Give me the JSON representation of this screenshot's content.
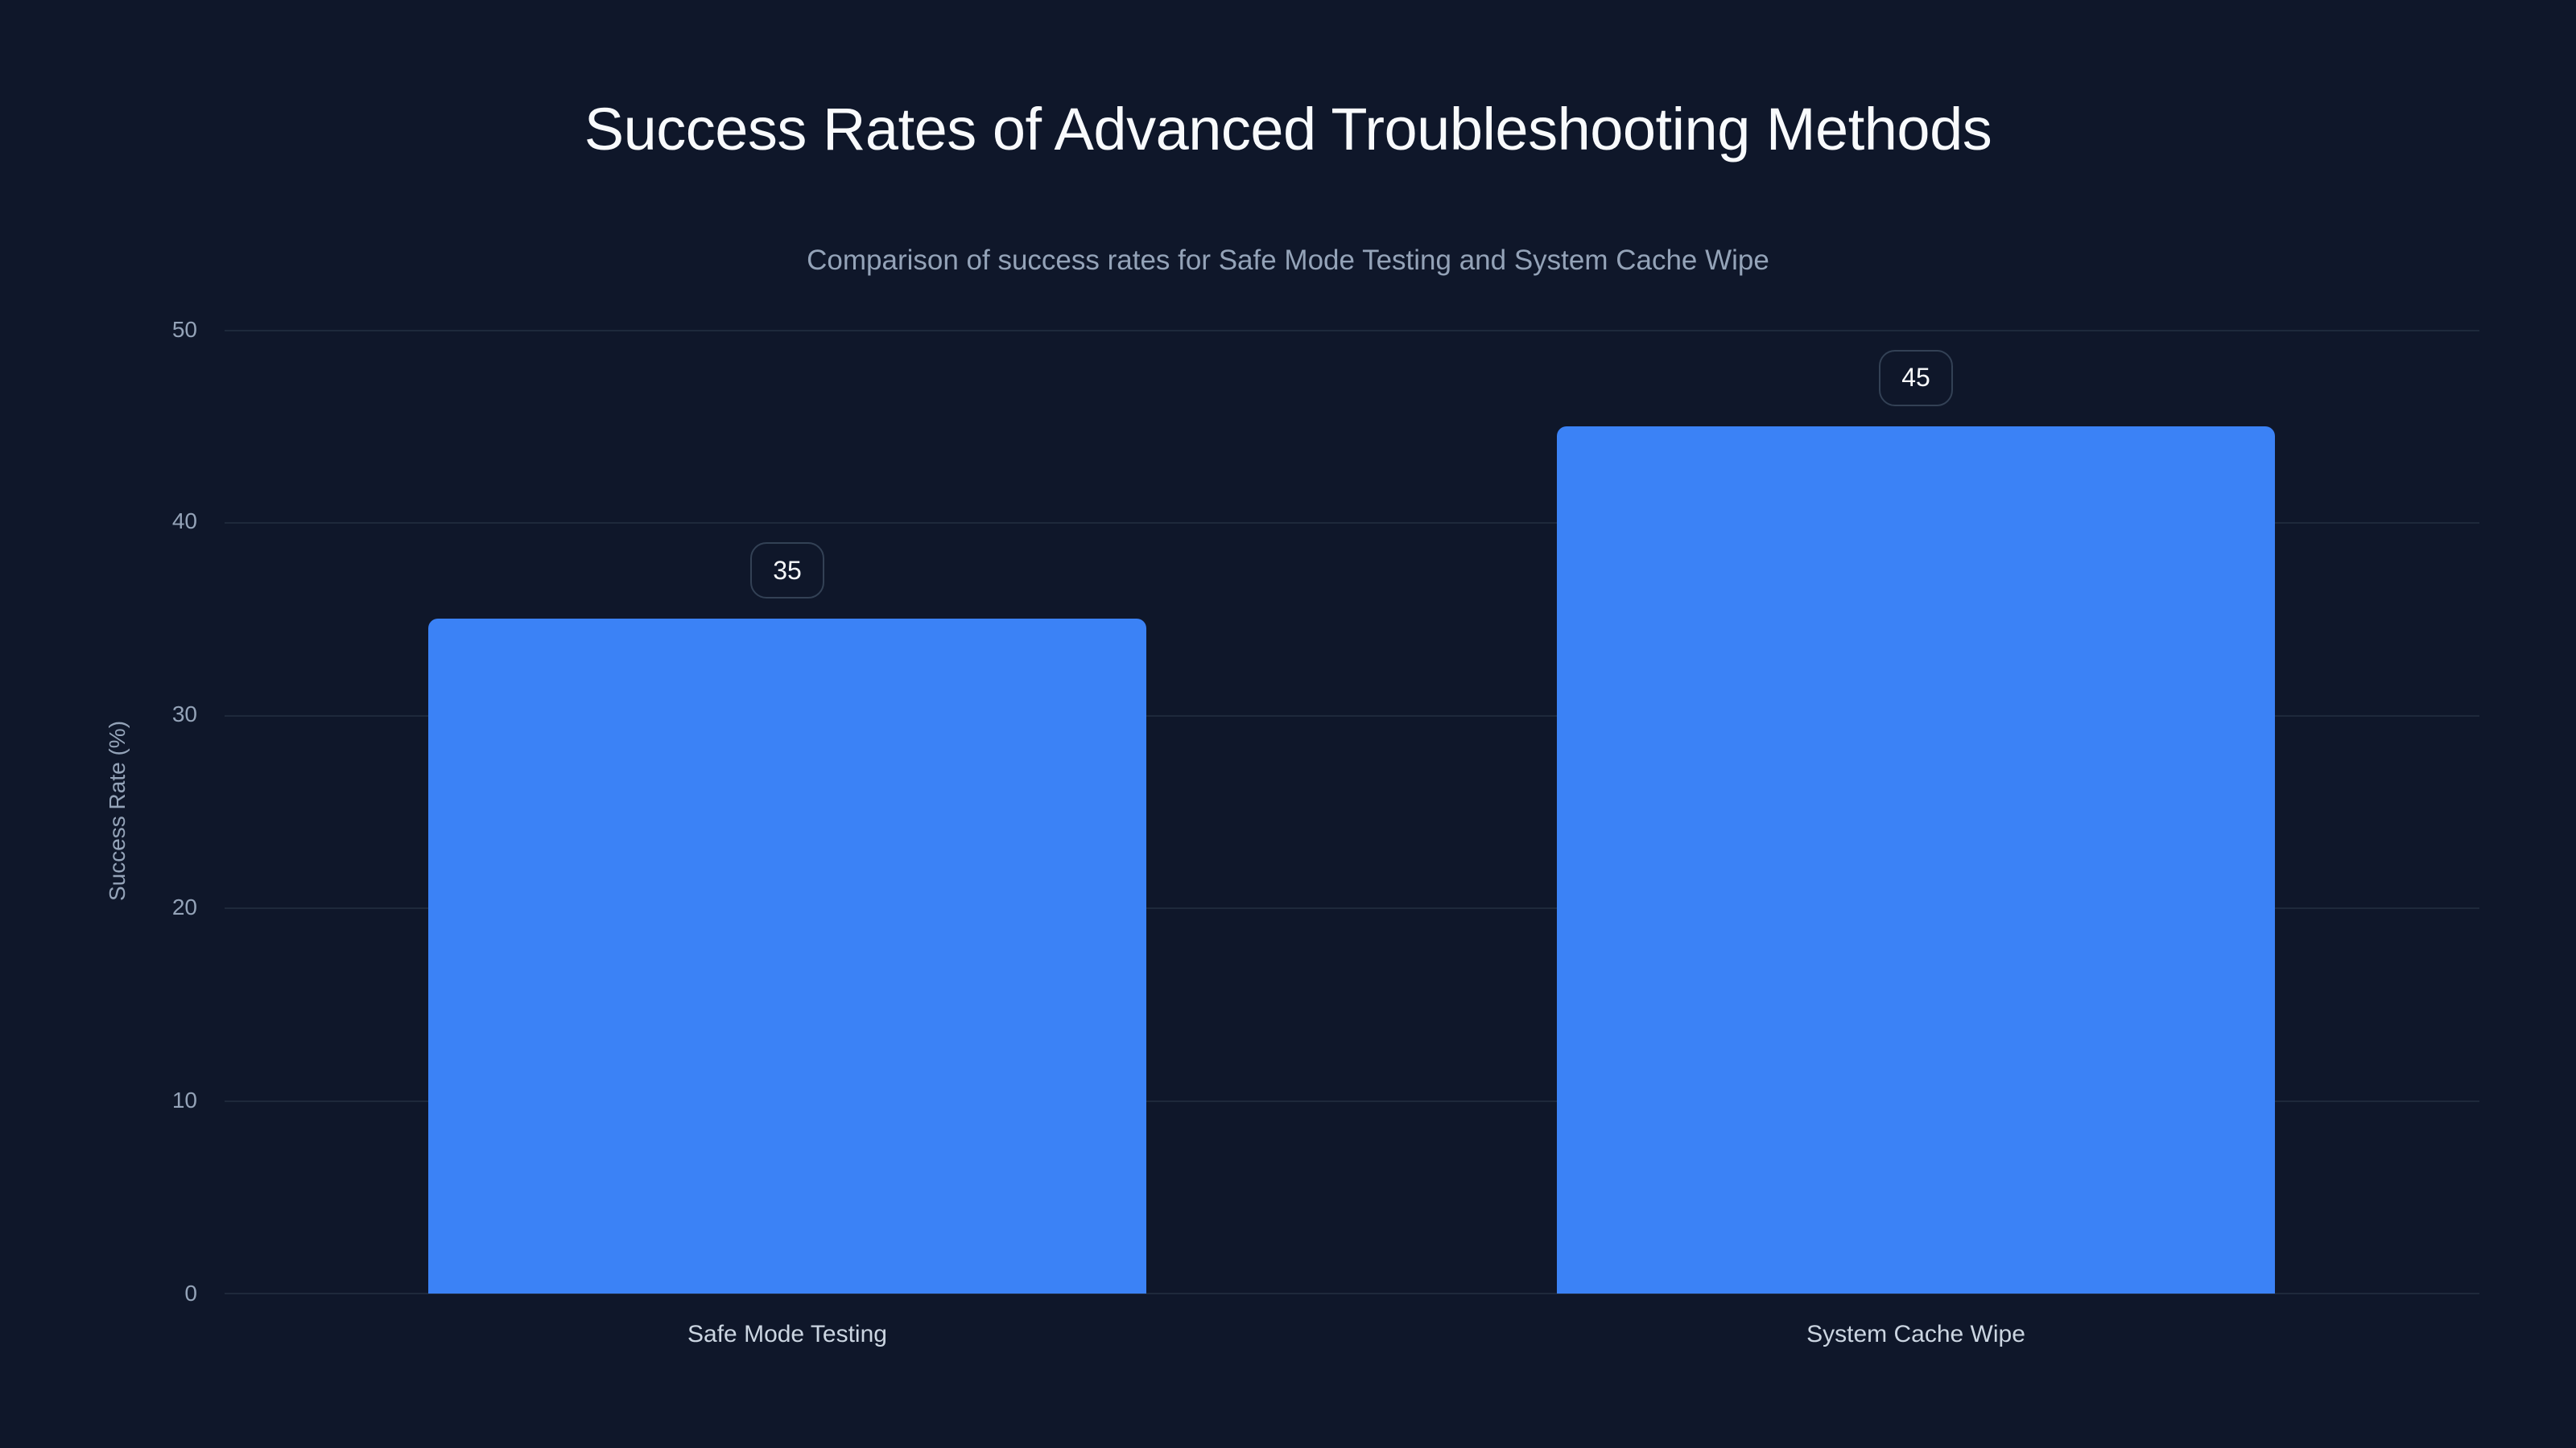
{
  "title": "Success Rates of Advanced Troubleshooting Methods",
  "subtitle": "Comparison of success rates for Safe Mode Testing and System Cache Wipe",
  "colors": {
    "background": "#0f172a",
    "bar": "#3b82f6",
    "grid": "#1e293b",
    "axis_text": "#94a3b8",
    "label_border": "#334155"
  },
  "y_axis": {
    "label": "Success Rate (%)",
    "ticks": [
      "50",
      "40",
      "30",
      "20",
      "10",
      "0"
    ]
  },
  "chart_data": {
    "type": "bar",
    "title": "Success Rates of Advanced Troubleshooting Methods",
    "subtitle": "Comparison of success rates for Safe Mode Testing and System Cache Wipe",
    "categories": [
      "Safe Mode Testing",
      "System Cache Wipe"
    ],
    "values": [
      35,
      45
    ],
    "data_labels": [
      "35",
      "45"
    ],
    "xlabel": "",
    "ylabel": "Success Rate (%)",
    "ylim": [
      0,
      50
    ],
    "yticks": [
      0,
      10,
      20,
      30,
      40,
      50
    ],
    "grid": true,
    "legend": "none"
  }
}
